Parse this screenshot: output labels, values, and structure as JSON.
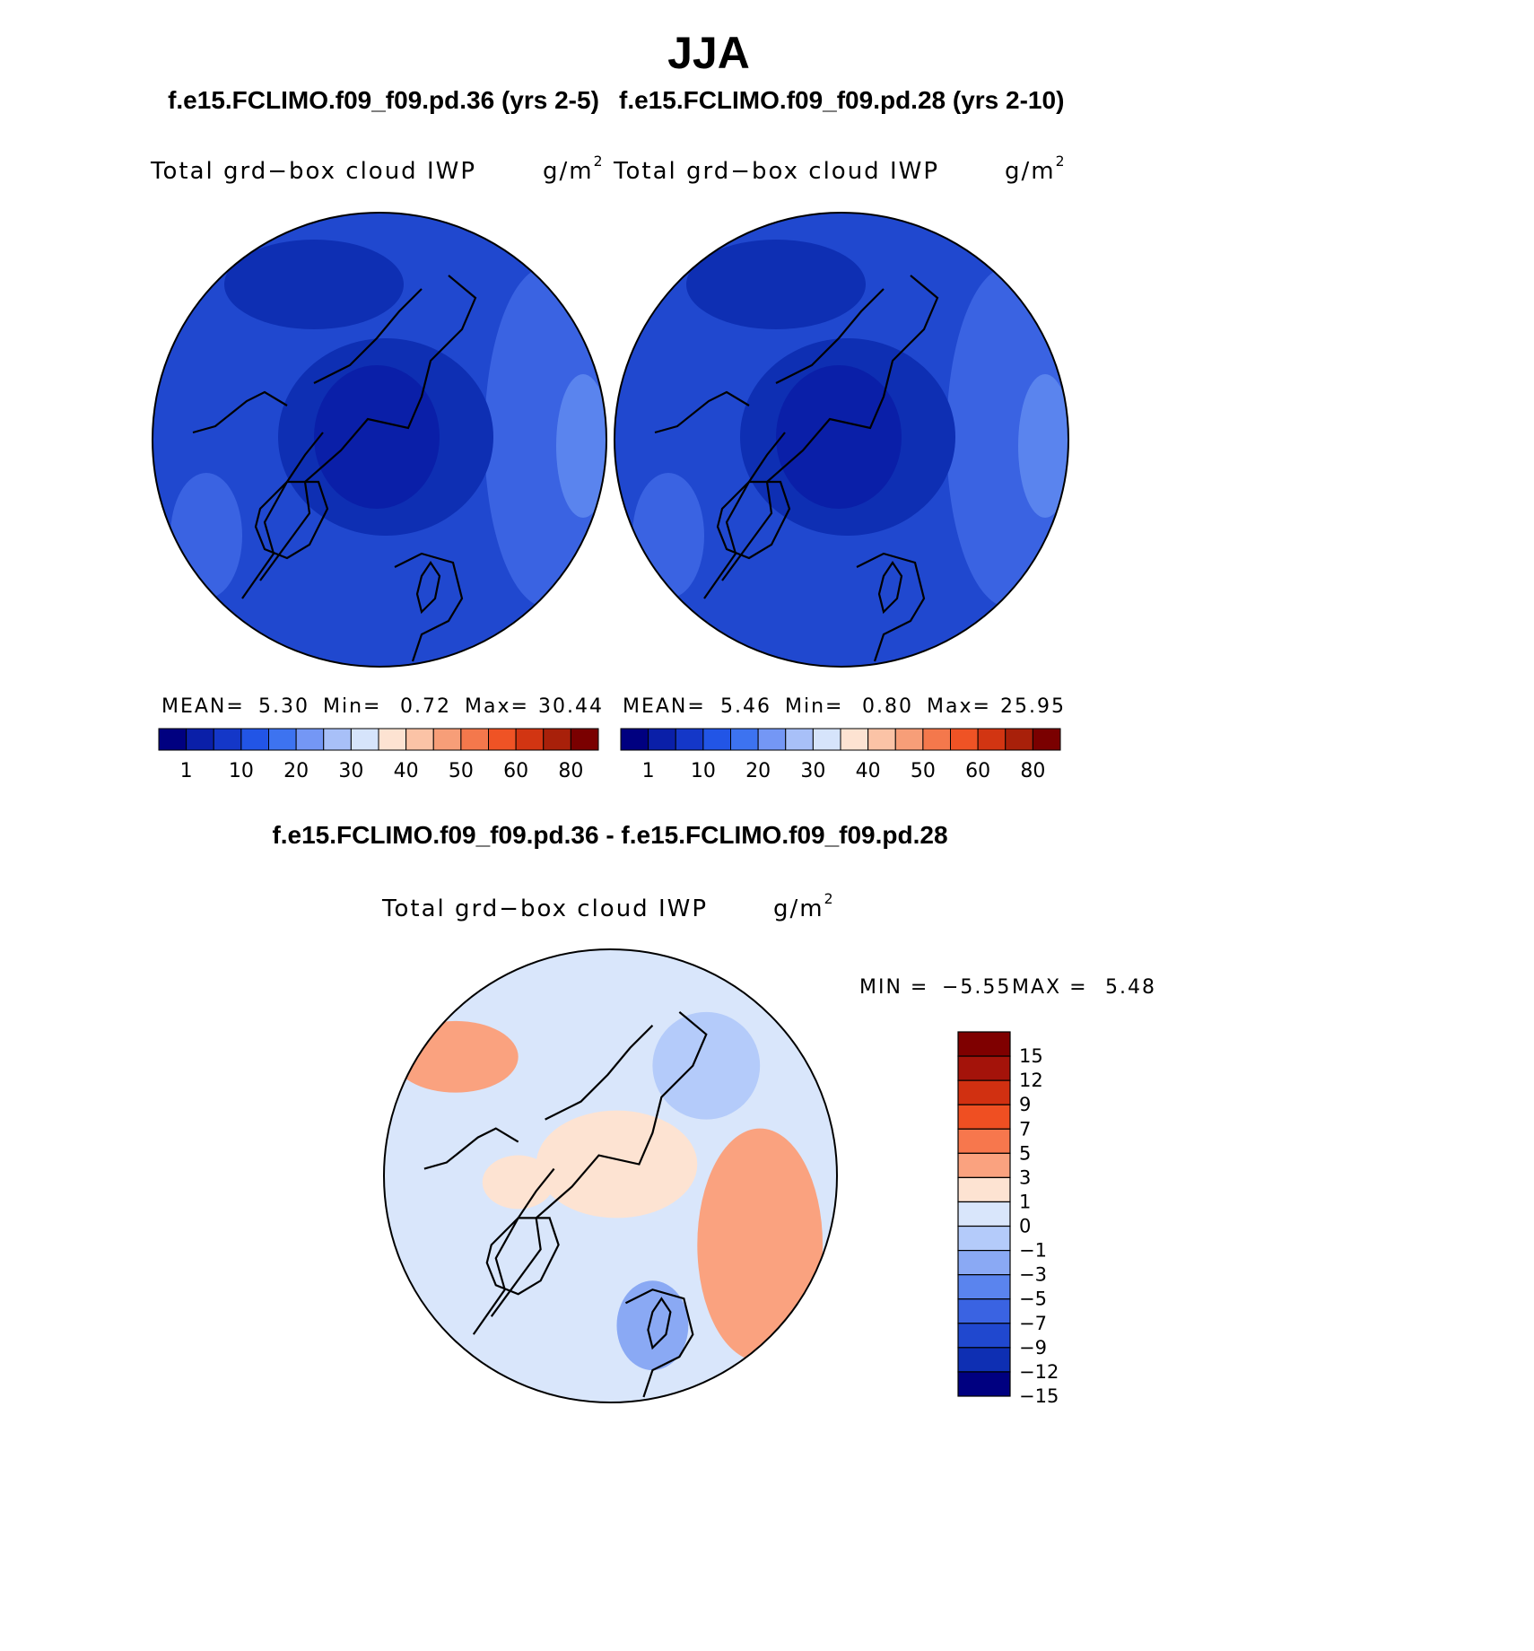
{
  "header": {
    "season": "JJA",
    "case_a_title": "f.e15.FCLIMO.f09_f09.pd.36 (yrs 2-5)",
    "case_b_title": "f.e15.FCLIMO.f09_f09.pd.28 (yrs 2-10)",
    "diff_title": "f.e15.FCLIMO.f09_f09.pd.36 - f.e15.FCLIMO.f09_f09.pd.28"
  },
  "panels": [
    {
      "variable": "Total grd−box cloud IWP",
      "units_base": "g/m",
      "units_exp": "2",
      "stats": {
        "mean_label": "MEAN=",
        "mean": "5.30",
        "min_label": "Min=",
        "min": "0.72",
        "max_label": "Max=",
        "max": "30.44"
      }
    },
    {
      "variable": "Total grd−box cloud IWP",
      "units_base": "g/m",
      "units_exp": "2",
      "stats": {
        "mean_label": "MEAN=",
        "mean": "5.46",
        "min_label": "Min=",
        "min": "0.80",
        "max_label": "Max=",
        "max": "25.95"
      }
    },
    {
      "variable": "Total grd−box cloud IWP",
      "units_base": "g/m",
      "units_exp": "2",
      "stats": {
        "min_label": "MIN =",
        "min": "−5.55",
        "max_label": "MAX =",
        "max": "5.48"
      }
    }
  ],
  "abs_colorbar": {
    "ticks": [
      "1",
      "10",
      "20",
      "30",
      "40",
      "50",
      "60",
      "80"
    ],
    "colors": [
      "#000080",
      "#0a1fa8",
      "#1437c8",
      "#2255e6",
      "#3d73f0",
      "#7497f5",
      "#a8c0f8",
      "#d6e4fb",
      "#fde3d2",
      "#fbc3a6",
      "#f79e78",
      "#f4784c",
      "#ef5325",
      "#d23512",
      "#a8200a",
      "#7a0000"
    ]
  },
  "diff_colorbar": {
    "ticks": [
      "15",
      "12",
      "9",
      "7",
      "5",
      "3",
      "1",
      "0",
      "−1",
      "−3",
      "−5",
      "−7",
      "−9",
      "−12",
      "−15"
    ],
    "colors": [
      "#7f0000",
      "#a4130a",
      "#d13011",
      "#ef4f22",
      "#f7774d",
      "#faa27f",
      "#fde3d2",
      "#d9e6fb",
      "#b4cbfa",
      "#8aa9f4",
      "#5a84ee",
      "#3a63e2",
      "#2048cf",
      "#0e2fb3",
      "#000080"
    ]
  },
  "map_colors": {
    "case_base": "#2048cf",
    "case_mid": "#3a63e2",
    "case_light": "#5a84ee",
    "case_dark": "#0e2fb3",
    "case_darker": "#0a1fa8",
    "diff_base": "#d9e6fb",
    "diff_warm": "#fde3d2",
    "diff_warm2": "#faa27f",
    "diff_cool": "#b4cbfa",
    "diff_cool2": "#8aa9f4",
    "coast": "#000000"
  }
}
